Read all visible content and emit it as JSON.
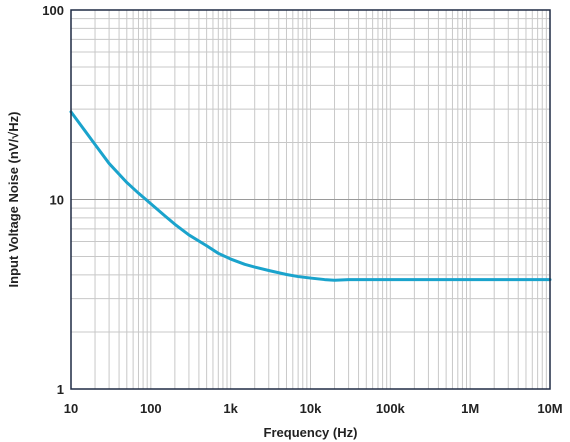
{
  "chart_data": {
    "type": "line",
    "title": "",
    "xlabel": "Frequency (Hz)",
    "ylabel": "Input Voltage Noise (nV/√Hz)",
    "x_scale": "log",
    "y_scale": "log",
    "xlim": [
      10,
      10000000
    ],
    "ylim": [
      1,
      100
    ],
    "grid": true,
    "x_ticks": [
      {
        "value": 10,
        "label": "10"
      },
      {
        "value": 100,
        "label": "100"
      },
      {
        "value": 1000,
        "label": "1k"
      },
      {
        "value": 10000,
        "label": "10k"
      },
      {
        "value": 100000,
        "label": "100k"
      },
      {
        "value": 1000000,
        "label": "1M"
      },
      {
        "value": 10000000,
        "label": "10M"
      }
    ],
    "y_ticks": [
      {
        "value": 1,
        "label": "1"
      },
      {
        "value": 10,
        "label": "10"
      },
      {
        "value": 100,
        "label": "100"
      }
    ],
    "colors": {
      "line": "#1aa3cc",
      "grid": "#c8c8c8",
      "frame": "#1f2a44",
      "text": "#222222"
    },
    "series": [
      {
        "color": "#1aa3cc",
        "points": [
          [
            10,
            29
          ],
          [
            15,
            23
          ],
          [
            20,
            19.5
          ],
          [
            30,
            15.5
          ],
          [
            50,
            12.3
          ],
          [
            70,
            10.8
          ],
          [
            100,
            9.5
          ],
          [
            150,
            8.2
          ],
          [
            200,
            7.4
          ],
          [
            300,
            6.5
          ],
          [
            500,
            5.7
          ],
          [
            700,
            5.2
          ],
          [
            1000,
            4.85
          ],
          [
            1500,
            4.55
          ],
          [
            2000,
            4.4
          ],
          [
            3000,
            4.22
          ],
          [
            5000,
            4.02
          ],
          [
            7000,
            3.92
          ],
          [
            10000,
            3.85
          ],
          [
            15000,
            3.78
          ],
          [
            20000,
            3.75
          ],
          [
            30000,
            3.78
          ],
          [
            100000,
            3.78
          ],
          [
            1000000,
            3.78
          ],
          [
            10000000,
            3.78
          ]
        ]
      }
    ]
  }
}
